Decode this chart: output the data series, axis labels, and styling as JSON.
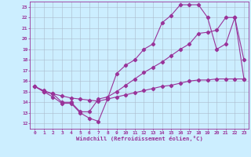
{
  "xlabel": "Windchill (Refroidissement éolien,°C)",
  "bg_color": "#cceeff",
  "grid_color": "#aabbcc",
  "line_color": "#993399",
  "xlim": [
    -0.5,
    23.5
  ],
  "ylim": [
    11.5,
    23.5
  ],
  "x_ticks": [
    0,
    1,
    2,
    3,
    4,
    5,
    6,
    7,
    8,
    9,
    10,
    11,
    12,
    13,
    14,
    15,
    16,
    17,
    18,
    19,
    20,
    21,
    22,
    23
  ],
  "y_ticks": [
    12,
    13,
    14,
    15,
    16,
    17,
    18,
    19,
    20,
    21,
    22,
    23
  ],
  "line1_x": [
    0,
    1,
    2,
    3,
    4,
    5,
    6,
    7,
    8,
    9,
    10,
    11,
    12,
    13,
    14,
    15,
    16,
    17,
    18,
    19,
    20,
    21,
    22,
    23
  ],
  "line1_y": [
    15.5,
    15.0,
    14.5,
    13.9,
    13.9,
    13.0,
    12.5,
    12.2,
    14.3,
    16.7,
    17.5,
    18.0,
    19.0,
    19.5,
    21.5,
    22.2,
    23.2,
    23.2,
    23.2,
    22.0,
    19.0,
    19.5,
    22.0,
    18.0
  ],
  "line2_x": [
    0,
    1,
    2,
    3,
    4,
    5,
    6,
    7,
    8,
    9,
    10,
    11,
    12,
    13,
    14,
    15,
    16,
    17,
    18,
    19,
    20,
    21,
    22,
    23
  ],
  "line2_y": [
    15.5,
    15.0,
    14.8,
    14.0,
    14.0,
    13.1,
    13.1,
    14.3,
    14.5,
    15.0,
    15.6,
    16.2,
    16.8,
    17.3,
    17.8,
    18.4,
    19.0,
    19.5,
    20.5,
    20.6,
    20.8,
    22.0,
    22.0,
    16.2
  ],
  "line3_x": [
    0,
    1,
    2,
    3,
    4,
    5,
    6,
    7,
    8,
    9,
    10,
    11,
    12,
    13,
    14,
    15,
    16,
    17,
    18,
    19,
    20,
    21,
    22,
    23
  ],
  "line3_y": [
    15.5,
    15.1,
    14.8,
    14.6,
    14.4,
    14.3,
    14.2,
    14.1,
    14.3,
    14.5,
    14.7,
    14.9,
    15.1,
    15.3,
    15.5,
    15.6,
    15.8,
    16.0,
    16.1,
    16.1,
    16.2,
    16.2,
    16.2,
    16.2
  ]
}
